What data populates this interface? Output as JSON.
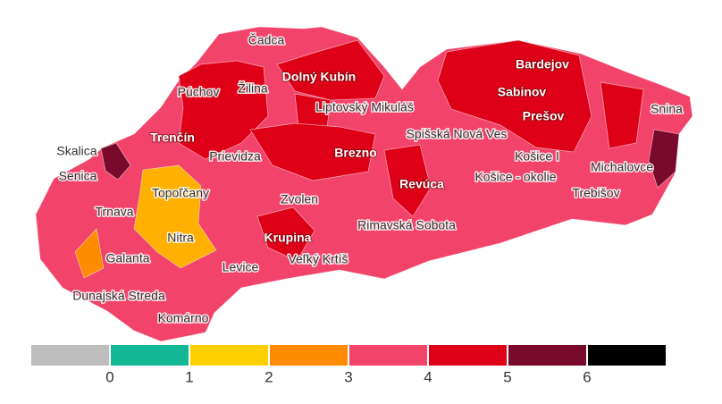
{
  "map": {
    "districts": [
      {
        "name": "Čadca",
        "text_color": "#333333"
      },
      {
        "name": "Žilina",
        "text_color": "#333333"
      },
      {
        "name": "Púchov",
        "text_color": "#333333"
      },
      {
        "name": "Dolný Kubín",
        "text_color": "#ffffff"
      },
      {
        "name": "Liptovský Mikuláš",
        "text_color": "#333333"
      },
      {
        "name": "Trenčín",
        "text_color": "#ffffff"
      },
      {
        "name": "Prievidza",
        "text_color": "#333333"
      },
      {
        "name": "Skalica",
        "text_color": "#333333"
      },
      {
        "name": "Senica",
        "text_color": "#333333"
      },
      {
        "name": "Topoľčany",
        "text_color": "#333333"
      },
      {
        "name": "Trnava",
        "text_color": "#333333"
      },
      {
        "name": "Nitra",
        "text_color": "#333333"
      },
      {
        "name": "Galanta",
        "text_color": "#333333"
      },
      {
        "name": "Levice",
        "text_color": "#333333"
      },
      {
        "name": "Zvolen",
        "text_color": "#333333"
      },
      {
        "name": "Krupina",
        "text_color": "#ffffff"
      },
      {
        "name": "Veľký Krtíš",
        "text_color": "#333333"
      },
      {
        "name": "Rimavská Sobota",
        "text_color": "#333333"
      },
      {
        "name": "Brezno",
        "text_color": "#ffffff"
      },
      {
        "name": "Revúca",
        "text_color": "#ffffff"
      },
      {
        "name": "Spišská Nová Ves",
        "text_color": "#333333"
      },
      {
        "name": "Košice I",
        "text_color": "#333333"
      },
      {
        "name": "Košice - okolie",
        "text_color": "#333333"
      },
      {
        "name": "Bardejov",
        "text_color": "#ffffff"
      },
      {
        "name": "Sabinov",
        "text_color": "#ffffff"
      },
      {
        "name": "Prešov",
        "text_color": "#ffffff"
      },
      {
        "name": "Snina",
        "text_color": "#333333"
      },
      {
        "name": "Michalovce",
        "text_color": "#333333"
      },
      {
        "name": "Trebišov",
        "text_color": "#333333"
      },
      {
        "name": "Dunajská Streda",
        "text_color": "#333333"
      },
      {
        "name": "Komárno",
        "text_color": "#333333"
      }
    ]
  },
  "legend": {
    "colors": [
      "#bdbdbd",
      "#12b795",
      "#ffd000",
      "#ff8c00",
      "#f2436b",
      "#de0016",
      "#7a0a2b",
      "#000000"
    ],
    "ticks": [
      0,
      1,
      2,
      3,
      4,
      5,
      6
    ]
  }
}
